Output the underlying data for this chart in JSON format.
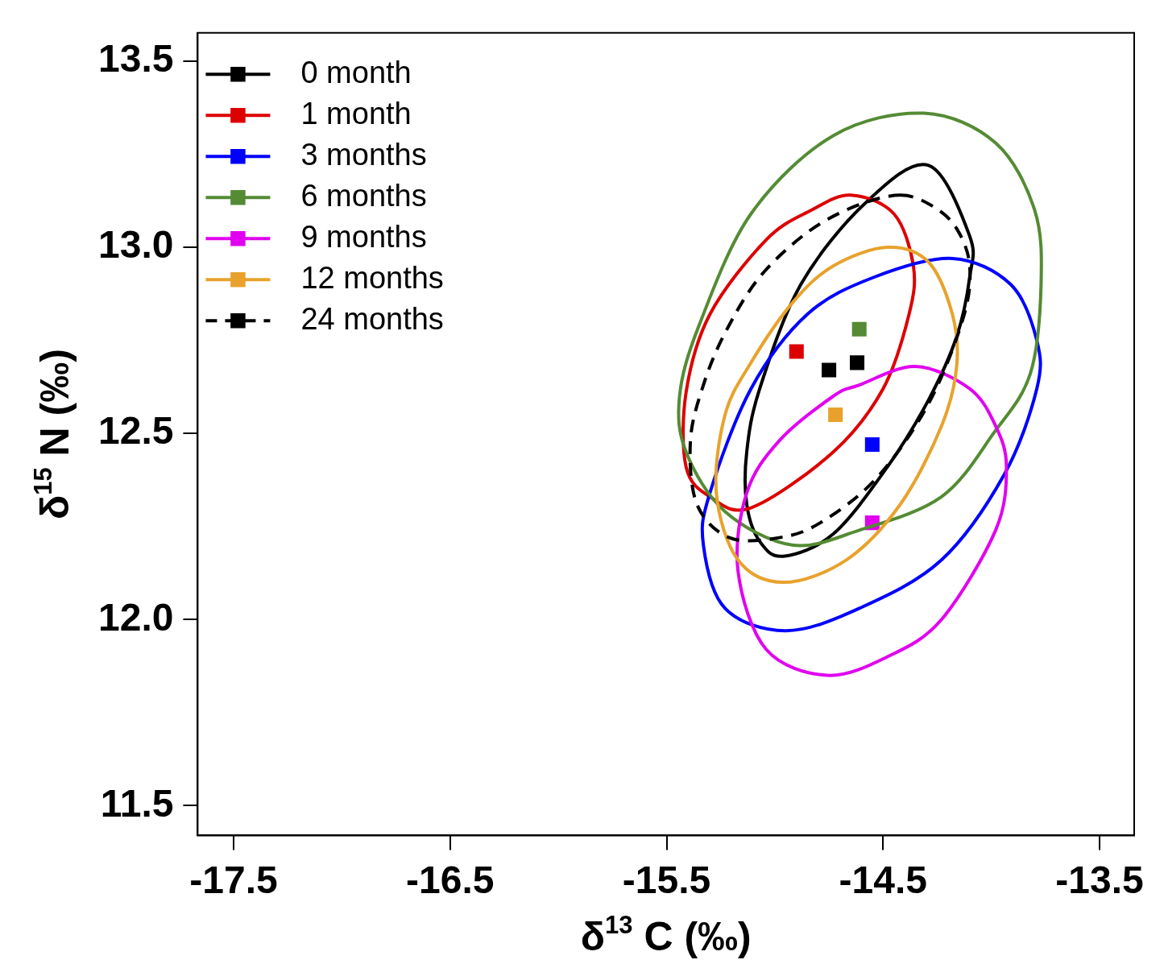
{
  "chart_data": {
    "type": "scatter",
    "xlabel": "δ$^{13}$ C (‰)",
    "ylabel": "δ$^{15}$ N (‰)",
    "xlim": [
      -17.666,
      -13.34
    ],
    "ylim": [
      11.42,
      13.576
    ],
    "xticks": [
      -17.5,
      -16.5,
      -15.5,
      -14.5,
      -13.5
    ],
    "yticks": [
      11.5,
      12.5,
      {
        "value": 12,
        "label": "12.0"
      },
      {
        "value": 13,
        "label": "13.0"
      },
      13.5
    ],
    "grid": false,
    "legend": "top left",
    "series": [
      {
        "name": "0 month",
        "type": "scatter",
        "marker": "square",
        "color": "#000000",
        "x": [
          -14.62
        ],
        "values": [
          12.69
        ]
      },
      {
        "name": "1 month",
        "type": "scatter",
        "marker": "square",
        "color": "#dd0000",
        "x": [
          -14.9
        ],
        "values": [
          12.72
        ]
      },
      {
        "name": "3 months",
        "type": "scatter",
        "marker": "square",
        "color": "#0000ff",
        "x": [
          -14.55
        ],
        "values": [
          12.47
        ]
      },
      {
        "name": "6 months",
        "type": "scatter",
        "marker": "square",
        "color": "#548b34",
        "x": [
          -14.61
        ],
        "values": [
          12.78
        ]
      },
      {
        "name": "9 months",
        "type": "scatter",
        "marker": "square",
        "color": "#e100f0",
        "x": [
          -14.55
        ],
        "values": [
          12.26
        ]
      },
      {
        "name": "12 months",
        "type": "scatter",
        "marker": "square",
        "color": "#e8a22c",
        "x": [
          -14.72
        ],
        "values": [
          12.55
        ]
      },
      {
        "name": "24 months",
        "type": "scatter",
        "marker": "square",
        "color": "#000000",
        "line_style": "dashed",
        "x": [
          -14.75
        ],
        "values": [
          12.67
        ]
      }
    ]
  }
}
